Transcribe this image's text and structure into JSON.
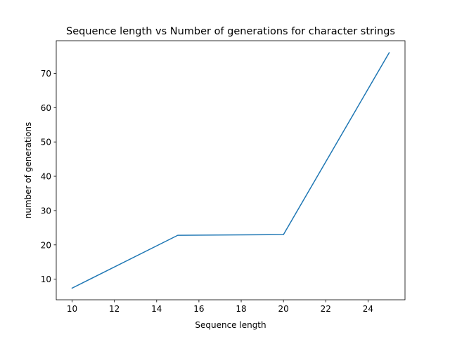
{
  "chart_data": {
    "type": "line",
    "title": "Sequence length vs Number of generations for character strings",
    "xlabel": "Sequence length",
    "ylabel": "number of generations",
    "xlim": [
      9.25,
      25.75
    ],
    "ylim": [
      4.0,
      79.5
    ],
    "x_ticks": [
      10,
      12,
      14,
      16,
      18,
      20,
      22,
      24
    ],
    "y_ticks": [
      10,
      20,
      30,
      40,
      50,
      60,
      70
    ],
    "grid": false,
    "series": [
      {
        "color": "#1f77b4",
        "x": [
          10,
          15,
          20,
          25
        ],
        "y": [
          7.4,
          22.8,
          23.0,
          76.0
        ]
      }
    ]
  }
}
